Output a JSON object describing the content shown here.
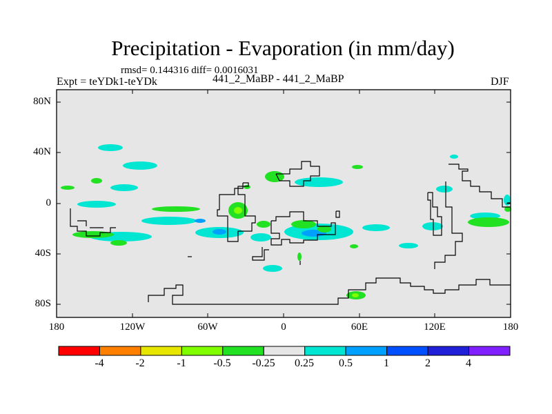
{
  "title": "Precipitation - Evaporation (in mm/day)",
  "stats": "rmsd= 0.144316 diff= 0.0016031",
  "experiment": "Expt = teYDk1-teYDk",
  "cases": "441_2_MaBP - 441_2_MaBP",
  "season": "DJF",
  "map": {
    "background": "#e6e6e6",
    "y_ticks": [
      "80N",
      "40N",
      "0",
      "40S",
      "80S"
    ],
    "x_ticks": [
      "180",
      "120W",
      "60W",
      "0",
      "60E",
      "120E",
      "180"
    ],
    "lat_range": [
      -90,
      90
    ],
    "lon_range": [
      -180,
      180
    ]
  },
  "colorbar": {
    "colors": [
      "#ff0000",
      "#ff8000",
      "#e6e600",
      "#80ff00",
      "#22e022",
      "#e6e6e6",
      "#00e6d2",
      "#00a0ff",
      "#0050ff",
      "#2020d8",
      "#8020ff"
    ],
    "labels": [
      "-4",
      "-2",
      "-1",
      "-0.5",
      "-0.25",
      "0.25",
      "0.5",
      "1",
      "2",
      "4"
    ]
  }
}
